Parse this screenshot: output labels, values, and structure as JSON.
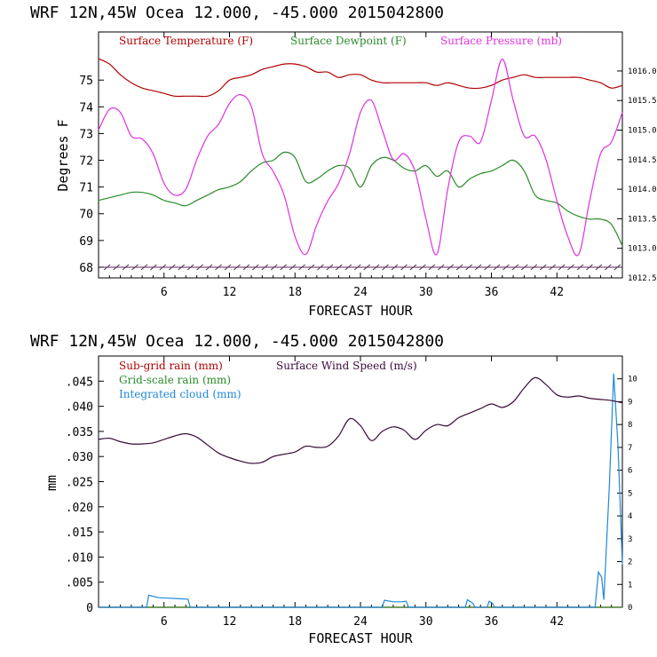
{
  "chart_data": [
    {
      "type": "line",
      "title": "WRF   12N,45W Ocea  12.000, -45.000  2015042800",
      "xlabel": "FORECAST HOUR",
      "ylabel": "Degrees F",
      "xlim": [
        0,
        48
      ],
      "ylim": [
        67.6,
        76.8
      ],
      "x_ticks": [
        6,
        12,
        18,
        24,
        30,
        36,
        42
      ],
      "y_ticks": [
        68,
        69,
        70,
        71,
        72,
        73,
        74,
        75
      ],
      "y2lim": [
        1012.5,
        1016.66
      ],
      "y2_ticks": [
        "1012.5",
        "1013.0",
        "1013.5",
        "1014.0",
        "1014.5",
        "1015.0",
        "1015.5",
        "1016.0"
      ],
      "legend_placement": "top-left inside",
      "series": [
        {
          "name": "Surface Temperature (F)",
          "color": "#b00000",
          "axis": "left",
          "x": [
            0,
            1,
            2,
            3,
            4,
            5,
            6,
            7,
            8,
            9,
            10,
            11,
            12,
            13,
            14,
            15,
            16,
            17,
            18,
            19,
            20,
            21,
            22,
            23,
            24,
            25,
            26,
            27,
            28,
            29,
            30,
            31,
            32,
            33,
            34,
            35,
            36,
            37,
            38,
            39,
            40,
            41,
            42,
            43,
            44,
            45,
            46,
            47,
            48
          ],
          "values": [
            75.8,
            75.6,
            75.2,
            74.9,
            74.7,
            74.6,
            74.5,
            74.4,
            74.4,
            74.4,
            74.4,
            74.6,
            75.0,
            75.1,
            75.2,
            75.4,
            75.5,
            75.6,
            75.6,
            75.5,
            75.3,
            75.3,
            75.1,
            75.2,
            75.2,
            75.0,
            74.9,
            74.9,
            74.9,
            74.9,
            74.9,
            74.8,
            74.9,
            74.8,
            74.7,
            74.7,
            74.8,
            75.0,
            75.1,
            75.2,
            75.1,
            75.1,
            75.1,
            75.1,
            75.1,
            75.0,
            74.9,
            74.7,
            74.8
          ]
        },
        {
          "name": "Surface Dewpoint (F)",
          "color": "#2a8a2a",
          "axis": "left",
          "x": [
            0,
            1,
            2,
            3,
            4,
            5,
            6,
            7,
            8,
            9,
            10,
            11,
            12,
            13,
            14,
            15,
            16,
            17,
            18,
            19,
            20,
            21,
            22,
            23,
            24,
            25,
            26,
            27,
            28,
            29,
            30,
            31,
            32,
            33,
            34,
            35,
            36,
            37,
            38,
            39,
            40,
            41,
            42,
            43,
            44,
            45,
            46,
            47,
            48
          ],
          "values": [
            70.5,
            70.6,
            70.7,
            70.8,
            70.8,
            70.7,
            70.5,
            70.4,
            70.3,
            70.5,
            70.7,
            70.9,
            71.0,
            71.2,
            71.6,
            71.9,
            72.0,
            72.3,
            72.1,
            71.2,
            71.3,
            71.6,
            71.8,
            71.7,
            71.0,
            71.8,
            72.1,
            72.0,
            71.7,
            71.6,
            71.8,
            71.4,
            71.6,
            71.0,
            71.3,
            71.5,
            71.6,
            71.8,
            72.0,
            71.6,
            70.7,
            70.5,
            70.4,
            70.1,
            69.9,
            69.8,
            69.8,
            69.6,
            68.8
          ]
        },
        {
          "name": "Surface Pressure (mb)",
          "color": "#e030e0",
          "axis": "right",
          "x": [
            0,
            1,
            2,
            3,
            4,
            5,
            6,
            7,
            8,
            9,
            10,
            11,
            12,
            13,
            14,
            15,
            16,
            17,
            18,
            19,
            20,
            21,
            22,
            23,
            24,
            25,
            26,
            27,
            28,
            29,
            30,
            31,
            32,
            33,
            34,
            35,
            36,
            37,
            38,
            39,
            40,
            41,
            42,
            43,
            44,
            45,
            46,
            47,
            48
          ],
          "values": [
            1015.0,
            1015.35,
            1015.3,
            1014.9,
            1014.85,
            1014.6,
            1014.1,
            1013.9,
            1014.0,
            1014.5,
            1014.9,
            1015.1,
            1015.45,
            1015.6,
            1015.4,
            1014.6,
            1014.3,
            1013.9,
            1013.2,
            1012.9,
            1013.4,
            1013.8,
            1014.1,
            1014.6,
            1015.3,
            1015.5,
            1015.0,
            1014.5,
            1014.6,
            1014.3,
            1013.5,
            1012.9,
            1014.0,
            1014.8,
            1014.9,
            1014.8,
            1015.5,
            1016.2,
            1015.5,
            1014.9,
            1014.9,
            1014.5,
            1013.8,
            1013.2,
            1012.9,
            1013.8,
            1014.6,
            1014.8,
            1015.3
          ]
        }
      ]
    },
    {
      "type": "line",
      "title": "WRF   12N,45W Ocea  12.000, -45.000  2015042800",
      "xlabel": "FORECAST HOUR",
      "ylabel": "mm",
      "xlim": [
        0,
        48
      ],
      "ylim": [
        0,
        0.05
      ],
      "x_ticks": [
        6,
        12,
        18,
        24,
        30,
        36,
        42
      ],
      "y_tick_values": [
        0,
        0.005,
        0.01,
        0.015,
        0.02,
        0.025,
        0.03,
        0.035,
        0.04,
        0.045
      ],
      "y_tick_labels": [
        "0",
        ".005",
        ".010",
        ".015",
        ".020",
        ".025",
        ".030",
        ".035",
        ".040",
        ".045"
      ],
      "y2lim": [
        0,
        11.0
      ],
      "y2_ticks": [
        "0",
        "1",
        "2",
        "3",
        "4",
        "5",
        "6",
        "7",
        "8",
        "9",
        "10"
      ],
      "legend_placement": "top-left inside",
      "series": [
        {
          "name": "Sub-grid rain (mm)",
          "color": "#b00000",
          "axis": "left",
          "x": [
            0,
            48
          ],
          "values": [
            0,
            0
          ]
        },
        {
          "name": "Grid-scale rain (mm)",
          "color": "#2a8a2a",
          "axis": "left",
          "x": [
            0,
            48
          ],
          "values": [
            0,
            0
          ]
        },
        {
          "name": "Integrated cloud (mm)",
          "color": "#1f88d8",
          "axis": "left",
          "x": [
            0,
            4.4,
            4.6,
            5.5,
            6.5,
            7.5,
            8.2,
            8.4,
            26.0,
            26.2,
            27.0,
            27.8,
            28.2,
            28.4,
            33.6,
            33.8,
            34.3,
            34.5,
            35.6,
            35.8,
            36.1,
            36.3,
            45.5,
            45.8,
            46.1,
            46.3,
            46.8,
            47.2,
            47.6,
            48.0
          ],
          "values": [
            0,
            0,
            0.0024,
            0.0019,
            0.0018,
            0.0017,
            0.0016,
            0,
            0,
            0.0014,
            0.0011,
            0.0011,
            0.0012,
            0,
            0,
            0.0015,
            0.0008,
            0,
            0,
            0.0012,
            0.0008,
            0,
            0,
            0.007,
            0.006,
            0.0015,
            0.024,
            0.0465,
            0.032,
            0.0085
          ]
        },
        {
          "name": "Surface Wind Speed (m/s)",
          "color": "#3a0a3a",
          "axis": "right",
          "x": [
            0,
            1,
            2,
            3,
            4,
            5,
            6,
            7,
            8,
            9,
            10,
            11,
            12,
            13,
            14,
            15,
            16,
            17,
            18,
            19,
            20,
            21,
            22,
            23,
            24,
            25,
            26,
            27,
            28,
            29,
            30,
            31,
            32,
            33,
            34,
            35,
            36,
            37,
            38,
            39,
            40,
            41,
            42,
            43,
            44,
            45,
            46,
            47,
            48
          ],
          "values": [
            7.35,
            7.4,
            7.25,
            7.15,
            7.15,
            7.2,
            7.35,
            7.5,
            7.6,
            7.45,
            7.1,
            6.75,
            6.55,
            6.4,
            6.3,
            6.35,
            6.6,
            6.7,
            6.8,
            7.05,
            7.0,
            7.05,
            7.5,
            8.25,
            7.95,
            7.3,
            7.7,
            7.9,
            7.75,
            7.35,
            7.75,
            8.0,
            7.95,
            8.3,
            8.5,
            8.7,
            8.9,
            8.75,
            9.0,
            9.6,
            10.05,
            9.75,
            9.3,
            9.2,
            9.25,
            9.15,
            9.1,
            9.05,
            8.95
          ]
        }
      ]
    }
  ]
}
